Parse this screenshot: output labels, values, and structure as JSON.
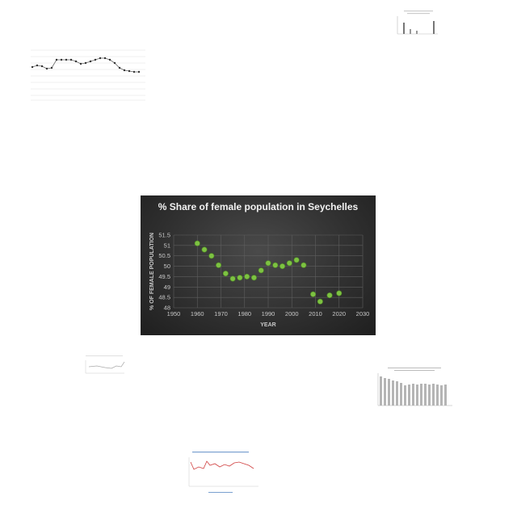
{
  "chart_data": {
    "type": "scatter",
    "title": "% Share of female population in Seychelles",
    "xlabel": "YEAR",
    "ylabel": "% OF FEMALE POPULATION",
    "xlim": [
      1950,
      2030
    ],
    "ylim": [
      48,
      51.5
    ],
    "xticks": [
      "1950",
      "1960",
      "1970",
      "1980",
      "1990",
      "2000",
      "2010",
      "2020",
      "2030"
    ],
    "yticks": [
      "48",
      "48.5",
      "49",
      "49.5",
      "50",
      "50.5",
      "51",
      "51.5"
    ],
    "grid": true,
    "marker_color": "#7dc242",
    "x": [
      1960,
      1963,
      1966,
      1969,
      1972,
      1975,
      1978,
      1981,
      1984,
      1987,
      1990,
      1993,
      1996,
      1999,
      2002,
      2005,
      2009,
      2012,
      2016,
      2020
    ],
    "y": [
      51.1,
      50.8,
      50.5,
      50.05,
      49.65,
      49.4,
      49.45,
      49.5,
      49.45,
      49.8,
      50.15,
      50.05,
      50.0,
      50.15,
      50.3,
      50.05,
      48.65,
      48.3,
      48.6,
      48.7
    ]
  }
}
